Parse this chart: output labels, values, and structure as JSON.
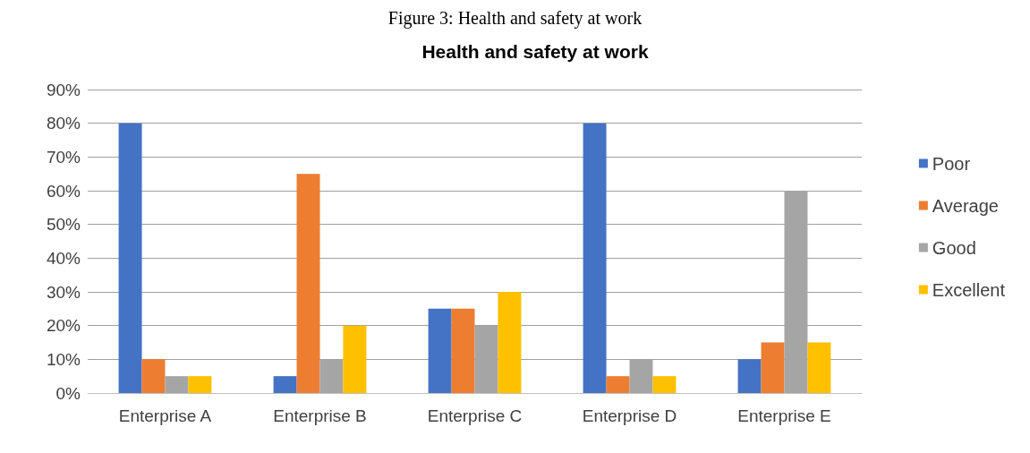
{
  "chart_data": {
    "type": "bar",
    "title": "Health and safety at work",
    "annotations": [
      "Figure 3: Health and safety at work"
    ],
    "categories": [
      "Enterprise A",
      "Enterprise B",
      "Enterprise C",
      "Enterprise D",
      "Enterprise E"
    ],
    "series": [
      {
        "name": "Poor",
        "color": "#4472c4",
        "values": [
          80,
          5,
          25,
          80,
          10
        ]
      },
      {
        "name": "Average",
        "color": "#ed7d31",
        "values": [
          10,
          65,
          25,
          5,
          15
        ]
      },
      {
        "name": "Good",
        "color": "#a5a5a5",
        "values": [
          5,
          10,
          20,
          10,
          60
        ]
      },
      {
        "name": "Excellent",
        "color": "#ffc000",
        "values": [
          5,
          20,
          30,
          5,
          15
        ]
      }
    ],
    "ylim": [
      0,
      90
    ],
    "yticks": [
      {
        "value": 0,
        "label": "0%"
      },
      {
        "value": 10,
        "label": "10%"
      },
      {
        "value": 20,
        "label": "20%"
      },
      {
        "value": 30,
        "label": "30%"
      },
      {
        "value": 40,
        "label": "40%"
      },
      {
        "value": 50,
        "label": "50%"
      },
      {
        "value": 60,
        "label": "60%"
      },
      {
        "value": 70,
        "label": "70%"
      },
      {
        "value": 80,
        "label": "80%"
      },
      {
        "value": 90,
        "label": "90%"
      }
    ],
    "grid": "y",
    "legend": "right"
  }
}
